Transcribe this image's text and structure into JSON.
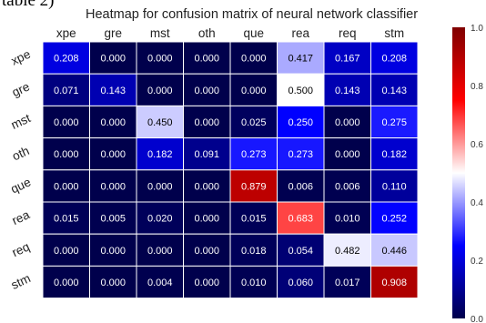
{
  "page": {
    "partial_text": "table 2)",
    "title": "Heatmap for confusion matrix of neural network classifier"
  },
  "chart_data": {
    "type": "heatmap",
    "title": "Heatmap for confusion matrix of neural network classifier",
    "x_categories": [
      "xpe",
      "gre",
      "mst",
      "oth",
      "que",
      "rea",
      "req",
      "stm"
    ],
    "y_categories": [
      "xpe",
      "gre",
      "mst",
      "oth",
      "que",
      "rea",
      "req",
      "stm"
    ],
    "values": [
      [
        "0.208",
        "0.000",
        "0.000",
        "0.000",
        "0.000",
        "0.417",
        "0.167",
        "0.208"
      ],
      [
        "0.071",
        "0.143",
        "0.000",
        "0.000",
        "0.000",
        "0.500",
        "0.143",
        "0.143"
      ],
      [
        "0.000",
        "0.000",
        "0.450",
        "0.000",
        "0.025",
        "0.250",
        "0.000",
        "0.275"
      ],
      [
        "0.000",
        "0.000",
        "0.182",
        "0.091",
        "0.273",
        "0.273",
        "0.000",
        "0.182"
      ],
      [
        "0.000",
        "0.000",
        "0.000",
        "0.000",
        "0.879",
        "0.006",
        "0.006",
        "0.110"
      ],
      [
        "0.015",
        "0.005",
        "0.020",
        "0.000",
        "0.015",
        "0.683",
        "0.010",
        "0.252"
      ],
      [
        "0.000",
        "0.000",
        "0.000",
        "0.000",
        "0.018",
        "0.054",
        "0.482",
        "0.446"
      ],
      [
        "0.000",
        "0.000",
        "0.004",
        "0.000",
        "0.010",
        "0.060",
        "0.017",
        "0.908"
      ]
    ],
    "colorscale": "seismic",
    "vmin": 0.0,
    "vmax": 1.0,
    "colorbar_ticks": [
      "0.0",
      "0.2",
      "0.4",
      "0.6",
      "0.8",
      "1.0"
    ],
    "grid": true,
    "x_axis_position": "top"
  },
  "colors": {
    "dark_navy": "#00004c",
    "blue": "#0000ff",
    "white": "#ffffff",
    "red": "#ff0000",
    "dark_red": "#800000",
    "cell_border": "#ffffff"
  }
}
